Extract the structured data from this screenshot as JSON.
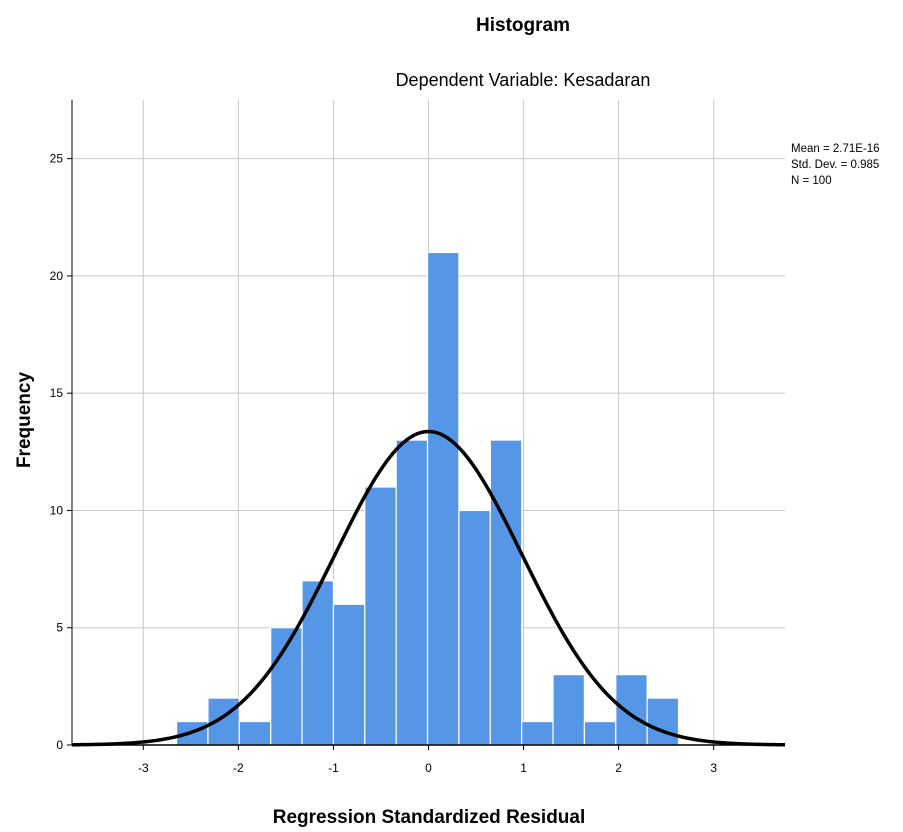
{
  "chart_data": {
    "type": "bar",
    "title": "Histogram",
    "subtitle": "Dependent Variable: Kesadaran",
    "xlabel": "Regression Standardized Residual",
    "ylabel": "Frequency",
    "x_ticks": [
      "-3",
      "-2",
      "-1",
      "0",
      "1",
      "2",
      "3"
    ],
    "y_ticks": [
      "0",
      "5",
      "10",
      "15",
      "20",
      "25"
    ],
    "xlim": [
      -3.75,
      3.75
    ],
    "ylim": [
      0,
      27.5
    ],
    "grid": true,
    "bar_color": "#5596e6",
    "bins": [
      {
        "x0": -2.65,
        "x1": -2.32,
        "count": 1
      },
      {
        "x0": -2.32,
        "x1": -1.99,
        "count": 2
      },
      {
        "x0": -1.99,
        "x1": -1.66,
        "count": 1
      },
      {
        "x0": -1.66,
        "x1": -1.33,
        "count": 5
      },
      {
        "x0": -1.33,
        "x1": -1.0,
        "count": 7
      },
      {
        "x0": -1.0,
        "x1": -0.67,
        "count": 6
      },
      {
        "x0": -0.67,
        "x1": -0.34,
        "count": 11
      },
      {
        "x0": -0.34,
        "x1": -0.01,
        "count": 13
      },
      {
        "x0": -0.01,
        "x1": 0.32,
        "count": 21
      },
      {
        "x0": 0.32,
        "x1": 0.65,
        "count": 10
      },
      {
        "x0": 0.65,
        "x1": 0.98,
        "count": 13
      },
      {
        "x0": 0.98,
        "x1": 1.31,
        "count": 1
      },
      {
        "x0": 1.31,
        "x1": 1.64,
        "count": 3
      },
      {
        "x0": 1.64,
        "x1": 1.97,
        "count": 1
      },
      {
        "x0": 1.97,
        "x1": 2.3,
        "count": 3
      },
      {
        "x0": 2.3,
        "x1": 2.63,
        "count": 2
      }
    ],
    "normal_curve": {
      "mean": 0,
      "std": 0.985,
      "n": 100,
      "bin_width": 0.33
    },
    "stats": [
      "Mean = 2.71E-16",
      "Std. Dev. = 0.985",
      "N = 100"
    ],
    "legend_position": "top-right"
  }
}
